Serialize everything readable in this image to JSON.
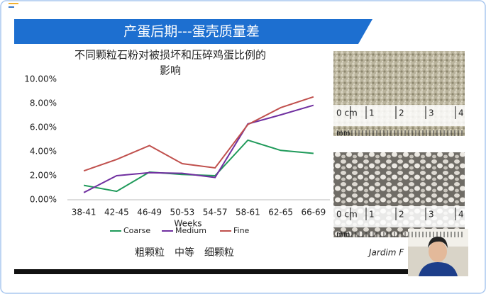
{
  "slide": {
    "title": "产蛋后期---蛋壳质量差",
    "caption": "粗颗粒　中等　细颗粒",
    "photo_credit": "Jardim F",
    "photos": [
      {
        "ruler": [
          "0 cm",
          "1",
          "2",
          "3",
          "4"
        ],
        "unit": "mm"
      },
      {
        "ruler": [
          "0 cm",
          "1",
          "2",
          "3",
          "4"
        ],
        "unit": "mm"
      }
    ]
  },
  "chart_data": {
    "type": "line",
    "title": "不同颗粒石粉对被损坏和压碎鸡蛋比例的",
    "subtitle": "影响",
    "x_label": "Weeks",
    "categories": [
      "38-41",
      "42-45",
      "46-49",
      "50-53",
      "54-57",
      "58-61",
      "62-65",
      "66-69"
    ],
    "series": [
      {
        "name": "Coarse",
        "color": "#1f9a5a",
        "values": [
          1.2,
          0.7,
          2.3,
          2.1,
          2.0,
          4.95,
          4.1,
          3.85
        ]
      },
      {
        "name": "Medium",
        "color": "#7030a0",
        "values": [
          0.6,
          2.0,
          2.25,
          2.2,
          1.85,
          6.3,
          7.05,
          7.85
        ]
      },
      {
        "name": "Fine",
        "color": "#c0504d",
        "values": [
          2.4,
          3.35,
          4.5,
          3.0,
          2.65,
          6.25,
          7.65,
          8.55
        ]
      }
    ],
    "ylim": [
      0,
      10
    ],
    "yticks": [
      {
        "value": 0,
        "label": "0.00%"
      },
      {
        "value": 2,
        "label": "2.00%"
      },
      {
        "value": 4,
        "label": "4.00%"
      },
      {
        "value": 6,
        "label": "6.00%"
      },
      {
        "value": 8,
        "label": "8.00%"
      },
      {
        "value": 10,
        "label": "10.00%"
      }
    ],
    "legend": "bottom"
  }
}
